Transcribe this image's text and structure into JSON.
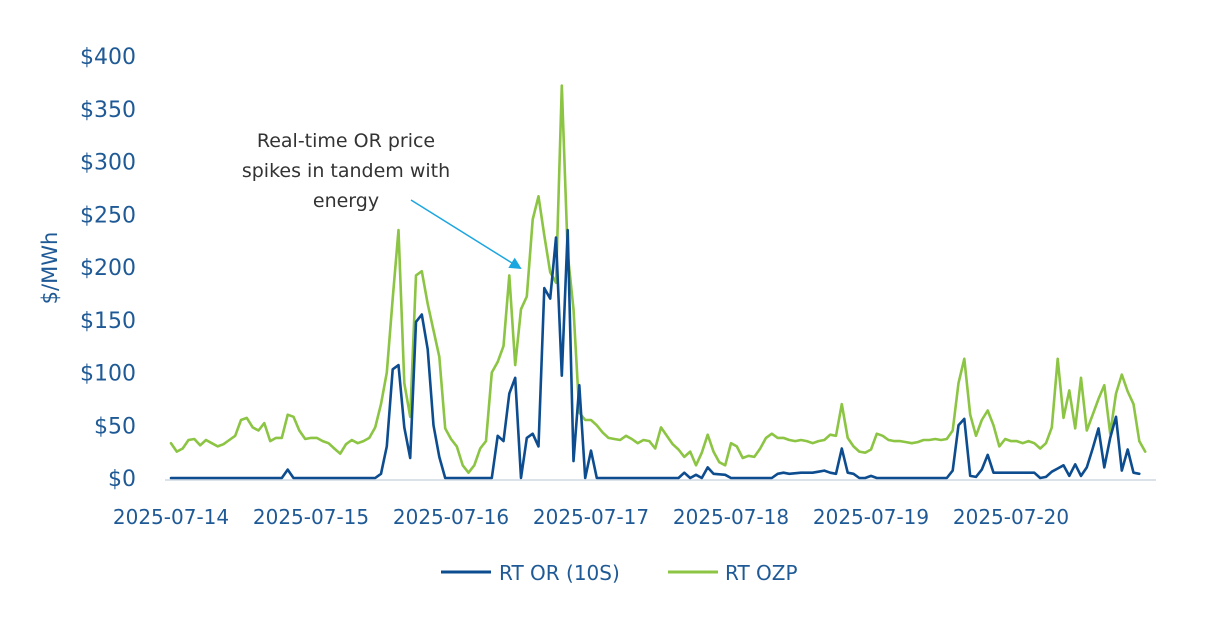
{
  "chart_data": {
    "type": "line",
    "ylabel": "$/MWh",
    "ylim": [
      0,
      400
    ],
    "yticks": [
      0,
      50,
      100,
      150,
      200,
      250,
      300,
      350,
      400
    ],
    "ytick_labels": [
      "$0",
      "$50",
      "$100",
      "$150",
      "$200",
      "$250",
      "$300",
      "$350",
      "$400"
    ],
    "xlim": [
      0,
      168
    ],
    "xticks": [
      0,
      24,
      48,
      72,
      96,
      120,
      144
    ],
    "xtick_labels": [
      "2025-07-14",
      "2025-07-15",
      "2025-07-16",
      "2025-07-17",
      "2025-07-18",
      "2025-07-19",
      "2025-07-20"
    ],
    "grid": false,
    "legend_position": "bottom",
    "annotation": {
      "lines": [
        "Real-time OR price",
        "spikes in tandem with",
        "energy"
      ],
      "target": {
        "x": 60,
        "y": 200
      }
    },
    "series": [
      {
        "name": "RT OR (10S)",
        "color": "#0d4d8f",
        "points": [
          [
            0,
            0
          ],
          [
            10,
            0
          ],
          [
            19,
            0
          ],
          [
            20,
            8
          ],
          [
            21,
            0
          ],
          [
            35,
            0
          ],
          [
            36,
            4
          ],
          [
            37,
            30
          ],
          [
            38,
            103
          ],
          [
            39,
            107
          ],
          [
            40,
            48
          ],
          [
            41,
            19
          ],
          [
            42,
            148
          ],
          [
            43,
            155
          ],
          [
            44,
            122
          ],
          [
            45,
            50
          ],
          [
            46,
            20
          ],
          [
            47,
            0
          ],
          [
            55,
            0
          ],
          [
            56,
            40
          ],
          [
            57,
            35
          ],
          [
            58,
            80
          ],
          [
            59,
            95
          ],
          [
            60,
            0
          ],
          [
            61,
            38
          ],
          [
            62,
            42
          ],
          [
            63,
            30
          ],
          [
            64,
            180
          ],
          [
            65,
            170
          ],
          [
            66,
            228
          ],
          [
            67,
            97
          ],
          [
            68,
            235
          ],
          [
            69,
            16
          ],
          [
            70,
            88
          ],
          [
            71,
            0
          ],
          [
            72,
            26
          ],
          [
            73,
            0
          ],
          [
            87,
            0
          ],
          [
            88,
            5
          ],
          [
            89,
            0
          ],
          [
            90,
            3
          ],
          [
            91,
            0
          ],
          [
            92,
            10
          ],
          [
            93,
            4
          ],
          [
            95,
            3
          ],
          [
            96,
            0
          ],
          [
            103,
            0
          ],
          [
            104,
            4
          ],
          [
            105,
            5
          ],
          [
            106,
            4
          ],
          [
            108,
            5
          ],
          [
            110,
            5
          ],
          [
            111,
            6
          ],
          [
            112,
            7
          ],
          [
            113,
            5
          ],
          [
            114,
            4
          ],
          [
            115,
            28
          ],
          [
            116,
            5
          ],
          [
            117,
            4
          ],
          [
            118,
            0
          ],
          [
            119,
            0
          ],
          [
            120,
            2
          ],
          [
            121,
            0
          ],
          [
            133,
            0
          ],
          [
            134,
            7
          ],
          [
            135,
            50
          ],
          [
            136,
            56
          ],
          [
            137,
            2
          ],
          [
            138,
            1
          ],
          [
            139,
            8
          ],
          [
            140,
            22
          ],
          [
            141,
            5
          ],
          [
            145,
            5
          ],
          [
            148,
            5
          ],
          [
            149,
            0
          ],
          [
            150,
            1
          ],
          [
            151,
            6
          ],
          [
            152,
            9
          ],
          [
            153,
            12
          ],
          [
            154,
            2
          ],
          [
            155,
            13
          ],
          [
            156,
            2
          ],
          [
            157,
            10
          ],
          [
            158,
            28
          ],
          [
            159,
            47
          ],
          [
            160,
            10
          ],
          [
            161,
            38
          ],
          [
            162,
            58
          ],
          [
            163,
            7
          ],
          [
            164,
            27
          ],
          [
            165,
            5
          ],
          [
            166,
            4
          ]
        ]
      },
      {
        "name": "RT OZP",
        "color": "#8cc443",
        "points": [
          [
            0,
            33
          ],
          [
            1,
            25
          ],
          [
            2,
            28
          ],
          [
            3,
            36
          ],
          [
            4,
            37
          ],
          [
            5,
            31
          ],
          [
            6,
            36
          ],
          [
            7,
            33
          ],
          [
            8,
            30
          ],
          [
            9,
            32
          ],
          [
            10,
            36
          ],
          [
            11,
            40
          ],
          [
            12,
            55
          ],
          [
            13,
            57
          ],
          [
            14,
            48
          ],
          [
            15,
            45
          ],
          [
            16,
            52
          ],
          [
            17,
            35
          ],
          [
            18,
            38
          ],
          [
            19,
            38
          ],
          [
            20,
            60
          ],
          [
            21,
            58
          ],
          [
            22,
            45
          ],
          [
            23,
            37
          ],
          [
            24,
            38
          ],
          [
            25,
            38
          ],
          [
            26,
            35
          ],
          [
            27,
            33
          ],
          [
            28,
            28
          ],
          [
            29,
            23
          ],
          [
            30,
            32
          ],
          [
            31,
            36
          ],
          [
            32,
            33
          ],
          [
            33,
            35
          ],
          [
            34,
            38
          ],
          [
            35,
            48
          ],
          [
            36,
            70
          ],
          [
            37,
            100
          ],
          [
            38,
            170
          ],
          [
            39,
            235
          ],
          [
            40,
            90
          ],
          [
            41,
            58
          ],
          [
            42,
            192
          ],
          [
            43,
            196
          ],
          [
            44,
            165
          ],
          [
            45,
            140
          ],
          [
            46,
            115
          ],
          [
            47,
            47
          ],
          [
            48,
            37
          ],
          [
            49,
            30
          ],
          [
            50,
            12
          ],
          [
            51,
            5
          ],
          [
            52,
            12
          ],
          [
            53,
            28
          ],
          [
            54,
            35
          ],
          [
            55,
            100
          ],
          [
            56,
            110
          ],
          [
            57,
            125
          ],
          [
            58,
            192
          ],
          [
            59,
            107
          ],
          [
            60,
            160
          ],
          [
            61,
            172
          ],
          [
            62,
            245
          ],
          [
            63,
            267
          ],
          [
            64,
            230
          ],
          [
            65,
            195
          ],
          [
            66,
            185
          ],
          [
            67,
            372
          ],
          [
            68,
            213
          ],
          [
            69,
            160
          ],
          [
            70,
            62
          ],
          [
            71,
            55
          ],
          [
            72,
            55
          ],
          [
            73,
            50
          ],
          [
            74,
            43
          ],
          [
            75,
            38
          ],
          [
            76,
            37
          ],
          [
            77,
            36
          ],
          [
            78,
            40
          ],
          [
            79,
            37
          ],
          [
            80,
            33
          ],
          [
            81,
            36
          ],
          [
            82,
            35
          ],
          [
            83,
            28
          ],
          [
            84,
            48
          ],
          [
            85,
            40
          ],
          [
            86,
            32
          ],
          [
            87,
            27
          ],
          [
            88,
            20
          ],
          [
            89,
            25
          ],
          [
            90,
            12
          ],
          [
            91,
            24
          ],
          [
            92,
            41
          ],
          [
            93,
            25
          ],
          [
            94,
            15
          ],
          [
            95,
            12
          ],
          [
            96,
            33
          ],
          [
            97,
            30
          ],
          [
            98,
            19
          ],
          [
            99,
            21
          ],
          [
            100,
            20
          ],
          [
            101,
            28
          ],
          [
            102,
            38
          ],
          [
            103,
            42
          ],
          [
            104,
            38
          ],
          [
            105,
            38
          ],
          [
            106,
            36
          ],
          [
            107,
            35
          ],
          [
            108,
            36
          ],
          [
            109,
            35
          ],
          [
            110,
            33
          ],
          [
            111,
            35
          ],
          [
            112,
            36
          ],
          [
            113,
            41
          ],
          [
            114,
            40
          ],
          [
            115,
            70
          ],
          [
            116,
            38
          ],
          [
            117,
            30
          ],
          [
            118,
            25
          ],
          [
            119,
            24
          ],
          [
            120,
            27
          ],
          [
            121,
            42
          ],
          [
            122,
            40
          ],
          [
            123,
            36
          ],
          [
            124,
            35
          ],
          [
            125,
            35
          ],
          [
            126,
            34
          ],
          [
            127,
            33
          ],
          [
            128,
            34
          ],
          [
            129,
            36
          ],
          [
            130,
            36
          ],
          [
            131,
            37
          ],
          [
            132,
            36
          ],
          [
            133,
            37
          ],
          [
            134,
            45
          ],
          [
            135,
            90
          ],
          [
            136,
            113
          ],
          [
            137,
            60
          ],
          [
            138,
            40
          ],
          [
            139,
            55
          ],
          [
            140,
            64
          ],
          [
            141,
            50
          ],
          [
            142,
            30
          ],
          [
            143,
            37
          ],
          [
            144,
            35
          ],
          [
            145,
            35
          ],
          [
            146,
            33
          ],
          [
            147,
            35
          ],
          [
            148,
            33
          ],
          [
            149,
            28
          ],
          [
            150,
            33
          ],
          [
            151,
            48
          ],
          [
            152,
            113
          ],
          [
            153,
            57
          ],
          [
            154,
            83
          ],
          [
            155,
            47
          ],
          [
            156,
            95
          ],
          [
            157,
            45
          ],
          [
            158,
            60
          ],
          [
            159,
            75
          ],
          [
            160,
            88
          ],
          [
            161,
            42
          ],
          [
            162,
            80
          ],
          [
            163,
            98
          ],
          [
            164,
            82
          ],
          [
            165,
            70
          ],
          [
            166,
            35
          ],
          [
            167,
            25
          ]
        ]
      }
    ]
  }
}
